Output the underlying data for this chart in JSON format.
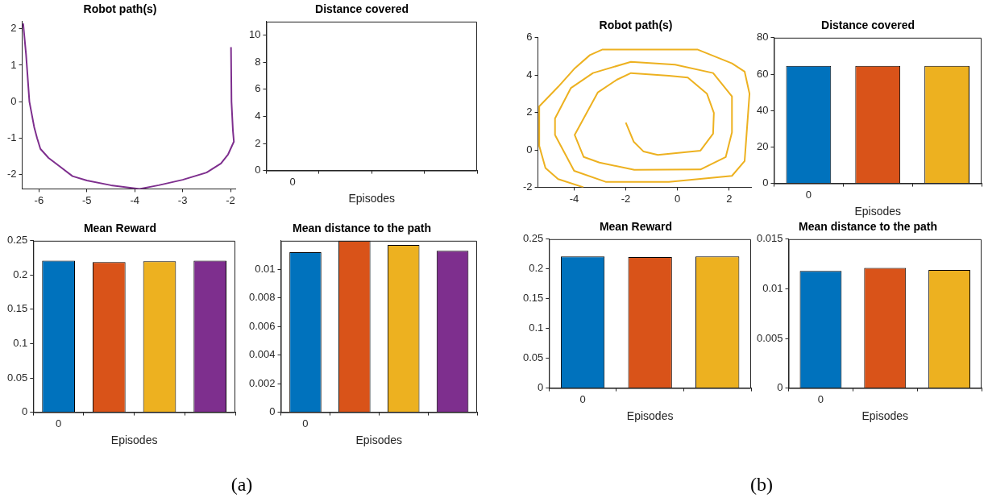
{
  "chart_data": [
    {
      "type": "line",
      "title": "Robot path(s)",
      "color": "#7e2f8e",
      "annotations": [
        "(a)"
      ],
      "x": [
        -6.33,
        -6.27,
        -6.2,
        -6.1,
        -6.04,
        -5.97,
        -5.8,
        -5.6,
        -5.3,
        -5.0,
        -4.5,
        -3.9,
        -3.5,
        -3.0,
        -2.5,
        -2.2,
        -2.05,
        -1.93,
        -1.95,
        -1.98,
        -1.99
      ],
      "values": [
        2.15,
        1.3,
        0.0,
        -0.7,
        -1.0,
        -1.3,
        -1.55,
        -1.75,
        -2.05,
        -2.17,
        -2.3,
        -2.4,
        -2.3,
        -2.15,
        -1.95,
        -1.7,
        -1.45,
        -1.1,
        -0.8,
        0.0,
        1.5
      ],
      "xlim": [
        -6.35,
        -1.9
      ],
      "ylim": [
        -2.4,
        2.2
      ],
      "xticks": [
        -6,
        -5,
        -4,
        -3,
        -2
      ],
      "yticks": [
        -2,
        -1,
        0,
        1,
        2
      ]
    },
    {
      "type": "bar",
      "title": "Distance covered",
      "xlabel": "Episodes",
      "categories": [
        "0",
        null,
        null,
        null
      ],
      "values": [
        null,
        null,
        null,
        null
      ],
      "colors": [
        "#0072bd",
        "#d95319",
        "#edb120",
        "#7e2f8e"
      ],
      "ylim": [
        0,
        11
      ],
      "yticks": [
        0,
        2,
        4,
        6,
        8,
        10
      ]
    },
    {
      "type": "bar",
      "title": "Mean Reward",
      "xlabel": "Episodes",
      "categories": [
        "0",
        null,
        null,
        null
      ],
      "values": [
        0.221,
        0.219,
        0.22,
        0.221
      ],
      "colors": [
        "#0072bd",
        "#d95319",
        "#edb120",
        "#7e2f8e"
      ],
      "ylim": [
        0,
        0.25
      ],
      "yticks": [
        0,
        0.05,
        0.1,
        0.15,
        0.2,
        0.25
      ]
    },
    {
      "type": "bar",
      "title": "Mean distance to the path",
      "xlabel": "Episodes",
      "categories": [
        "0",
        null,
        null,
        null
      ],
      "values": [
        0.0112,
        0.012,
        0.0117,
        0.0113
      ],
      "colors": [
        "#0072bd",
        "#d95319",
        "#edb120",
        "#7e2f8e"
      ],
      "ylim": [
        0,
        0.012
      ],
      "yticks": [
        0,
        0.002,
        0.004,
        0.006,
        0.008,
        0.01
      ]
    },
    {
      "type": "line",
      "title": "Robot path(s)",
      "color": "#edb120",
      "annotations": [
        "(b)"
      ],
      "x": [
        -2,
        -1.69,
        -1.31,
        -0.76,
        0.89,
        1.38,
        1.41,
        1.14,
        0.4,
        -0.33,
        -1.8,
        -2.35,
        -3.08,
        -3.98,
        -3.63,
        -3.02,
        -1.67,
        0.89,
        1.87,
        2.11,
        2.11,
        1.38,
        -0.09,
        -1.8,
        -3.27,
        -4.13,
        -4.74,
        -4.74,
        -4.0,
        -2.78,
        -0.33,
        2.11,
        2.6,
        2.79,
        2.6,
        2.11,
        0.77,
        -2.9,
        -3.39,
        -4.0,
        -4.62,
        -5.35,
        -5.35,
        -5.11,
        -4.62,
        -3.64
      ],
      "values": [
        1.46,
        0.43,
        -0.09,
        -0.27,
        -0.04,
        0.87,
        1.98,
        3.01,
        3.87,
        3.97,
        4.11,
        3.75,
        3.08,
        0.8,
        -0.38,
        -0.68,
        -1.07,
        -1.05,
        -0.38,
        0.94,
        2.86,
        4.11,
        4.56,
        4.71,
        4.11,
        3.3,
        1.68,
        0.8,
        -1.12,
        -1.71,
        -1.71,
        -1.39,
        -0.6,
        3.01,
        4.19,
        4.63,
        5.37,
        5.37,
        5.07,
        4.33,
        3.37,
        2.33,
        0.21,
        -0.97,
        -1.56,
        -2.0
      ],
      "xlim": [
        -5.4,
        2.85
      ],
      "ylim": [
        -2,
        6
      ],
      "xticks": [
        -4,
        -2,
        0,
        2
      ],
      "yticks": [
        -2,
        0,
        2,
        4,
        6
      ]
    },
    {
      "type": "bar",
      "title": "Distance covered",
      "xlabel": "Episodes",
      "categories": [
        "0",
        null,
        null
      ],
      "values": [
        64.5,
        64.5,
        64.5
      ],
      "colors": [
        "#0072bd",
        "#d95319",
        "#edb120"
      ],
      "ylim": [
        0,
        80
      ],
      "yticks": [
        0,
        20,
        40,
        60,
        80
      ]
    },
    {
      "type": "bar",
      "title": "Mean Reward",
      "xlabel": "Episodes",
      "categories": [
        "0",
        null,
        null
      ],
      "values": [
        0.221,
        0.22,
        0.221
      ],
      "colors": [
        "#0072bd",
        "#d95319",
        "#edb120"
      ],
      "ylim": [
        0,
        0.25
      ],
      "yticks": [
        0,
        0.05,
        0.1,
        0.15,
        0.2,
        0.25
      ]
    },
    {
      "type": "bar",
      "title": "Mean distance to the path",
      "xlabel": "Episodes",
      "categories": [
        "0",
        null,
        null
      ],
      "values": [
        0.0118,
        0.0121,
        0.0119
      ],
      "colors": [
        "#0072bd",
        "#d95319",
        "#edb120"
      ],
      "ylim": [
        0,
        0.015
      ],
      "yticks": [
        0,
        0.005,
        0.01,
        0.015
      ]
    }
  ]
}
